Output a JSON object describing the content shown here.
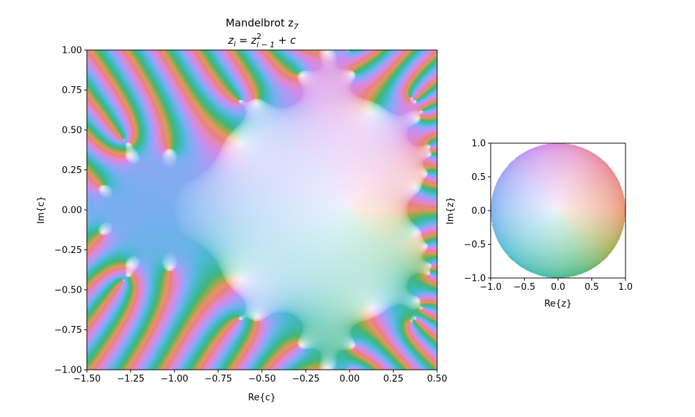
{
  "chart_data": [
    {
      "type": "heatmap",
      "title_line1": "Mandelbrot z",
      "title_line1_sub": "7",
      "title_line2": "z_i = z_{i-1}^2 + c",
      "title_line2_parts": {
        "lhs": "z",
        "lhs_sub": "i",
        "eq": " = ",
        "rhs": "z",
        "rhs_sup": "2",
        "rhs_sub": "i − 1",
        "tail": " + c"
      },
      "xlabel": "Re{c}",
      "ylabel": "Im{c}",
      "xlim": [
        -1.5,
        0.5
      ],
      "ylim": [
        -1.0,
        1.0
      ],
      "x_ticks": [
        "−1.50",
        "−1.25",
        "−1.00",
        "−0.75",
        "−0.50",
        "−0.25",
        "0.00",
        "0.25",
        "0.50"
      ],
      "x_tick_values": [
        -1.5,
        -1.25,
        -1.0,
        -0.75,
        -0.5,
        -0.25,
        0.0,
        0.25,
        0.5
      ],
      "y_ticks": [
        "−1.00",
        "−0.75",
        "−0.50",
        "−0.25",
        "0.00",
        "0.25",
        "0.50",
        "0.75",
        "1.00"
      ],
      "y_tick_values": [
        -1.0,
        -0.75,
        -0.5,
        -0.25,
        0.0,
        0.25,
        0.5,
        0.75,
        1.0
      ],
      "iteration": 7,
      "grid": false
    },
    {
      "type": "heatmap",
      "title": "",
      "xlabel": "Re{z}",
      "ylabel": "Im{z}",
      "xlim": [
        -1.0,
        1.0
      ],
      "ylim": [
        -1.0,
        1.0
      ],
      "x_ticks": [
        "−1.0",
        "−0.5",
        "0.0",
        "0.5",
        "1.0"
      ],
      "x_tick_values": [
        -1.0,
        -0.5,
        0.0,
        0.5,
        1.0
      ],
      "y_ticks": [
        "−1.0",
        "−0.5",
        "0.0",
        "0.5",
        "1.0"
      ],
      "y_tick_values": [
        -1.0,
        -0.5,
        0.0,
        0.5,
        1.0
      ],
      "grid": false
    }
  ]
}
